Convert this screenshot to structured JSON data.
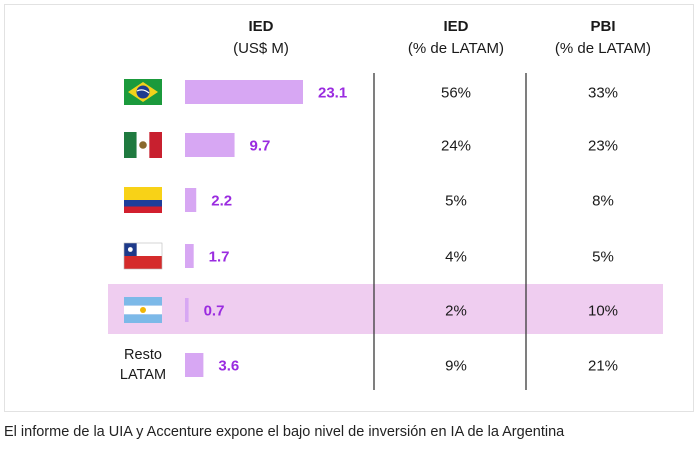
{
  "caption": "El informe de la UIA y Accenture expone el bajo nivel de inversión en IA de la Argentina",
  "colors": {
    "bar": "#d7a7f3",
    "value_text": "#9a2be0",
    "highlight": "#efcdf0",
    "divider": "#3a3a3a",
    "text": "#1a1a1a"
  },
  "chart_data": {
    "type": "table",
    "columns": [
      {
        "title": "IED",
        "subtitle": "(US$ M)"
      },
      {
        "title": "IED",
        "subtitle": "(% de LATAM)"
      },
      {
        "title": "PBI",
        "subtitle": "(% de LATAM)"
      }
    ],
    "highlight_row": "argentina",
    "rows": [
      {
        "key": "brazil",
        "flag": "brazil-flag-icon",
        "label": "",
        "ied_usd_m": 23.1,
        "ied_label": "23.1",
        "ied_pct": "56%",
        "pbi_pct": "33%"
      },
      {
        "key": "mexico",
        "flag": "mexico-flag-icon",
        "label": "",
        "ied_usd_m": 9.7,
        "ied_label": "9.7",
        "ied_pct": "24%",
        "pbi_pct": "23%"
      },
      {
        "key": "colombia",
        "flag": "colombia-flag-icon",
        "label": "",
        "ied_usd_m": 2.2,
        "ied_label": "2.2",
        "ied_pct": "5%",
        "pbi_pct": "8%"
      },
      {
        "key": "chile",
        "flag": "chile-flag-icon",
        "label": "",
        "ied_usd_m": 1.7,
        "ied_label": "1.7",
        "ied_pct": "4%",
        "pbi_pct": "5%"
      },
      {
        "key": "argentina",
        "flag": "argentina-flag-icon",
        "label": "",
        "ied_usd_m": 0.7,
        "ied_label": "0.7",
        "ied_pct": "2%",
        "pbi_pct": "10%"
      },
      {
        "key": "resto",
        "flag": "",
        "label": "Resto\nLATAM",
        "ied_usd_m": 3.6,
        "ied_label": "3.6",
        "ied_pct": "9%",
        "pbi_pct": "21%"
      }
    ]
  }
}
